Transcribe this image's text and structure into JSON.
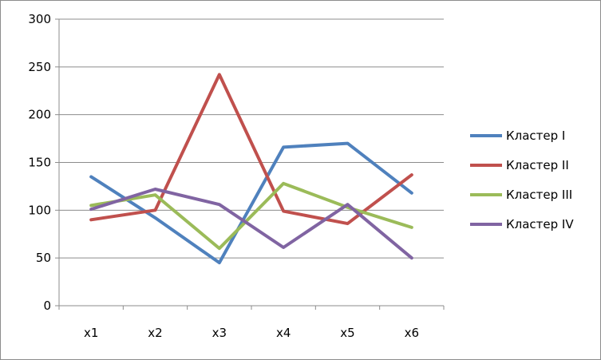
{
  "chart_data": {
    "type": "line",
    "categories": [
      "x1",
      "x2",
      "x3",
      "x4",
      "x5",
      "x6"
    ],
    "series": [
      {
        "name": "Кластер I",
        "color": "#4F81BD",
        "values": [
          135,
          92,
          45,
          166,
          170,
          118
        ]
      },
      {
        "name": "Кластер II",
        "color": "#C0504D",
        "values": [
          90,
          100,
          242,
          99,
          86,
          137
        ]
      },
      {
        "name": "Кластер III",
        "color": "#9BBB59",
        "values": [
          105,
          116,
          60,
          128,
          103,
          82
        ]
      },
      {
        "name": "Кластер IV",
        "color": "#8064A2",
        "values": [
          101,
          122,
          106,
          61,
          106,
          50
        ]
      }
    ],
    "ylim": [
      0,
      300
    ],
    "yticks": [
      "0",
      "50",
      "100",
      "150",
      "200",
      "250",
      "300"
    ],
    "grid": true,
    "legend": "right"
  }
}
